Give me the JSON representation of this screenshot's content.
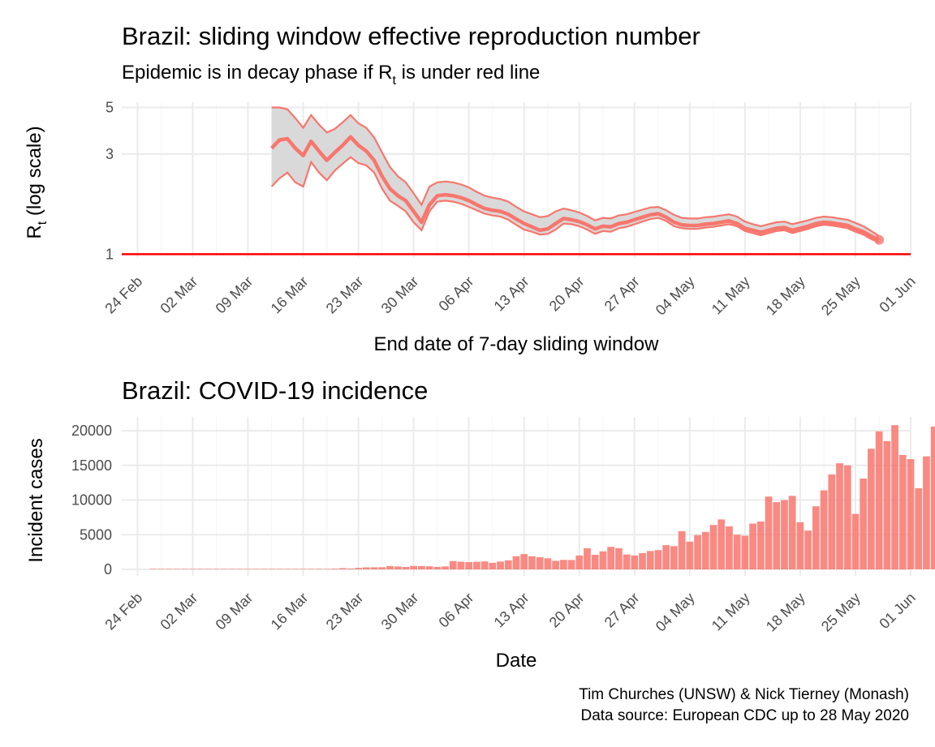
{
  "colors": {
    "series": "#f8766d",
    "ribbon": "#d9d9d9",
    "threshold": "#ff0000",
    "grid": "#ebebeb"
  },
  "chart_data": [
    {
      "type": "line",
      "title": "Brazil: sliding window effective reproduction number",
      "subtitle_prefix": "Epidemic is in decay phase if R",
      "subtitle_sub": "t",
      "subtitle_suffix": "  is under red line",
      "ylabel_main": "R",
      "ylabel_sub": "t",
      "ylabel_suffix": " (log scale)",
      "xlabel": "End date of 7-day sliding window",
      "y_scale": "log",
      "ylim": [
        1,
        5
      ],
      "yticks": [
        1,
        3,
        5
      ],
      "xlim": [
        "2020-02-22",
        "2020-06-01"
      ],
      "xticks": [
        "2020-02-24",
        "2020-03-02",
        "2020-03-09",
        "2020-03-16",
        "2020-03-23",
        "2020-03-30",
        "2020-04-06",
        "2020-04-13",
        "2020-04-20",
        "2020-04-27",
        "2020-05-04",
        "2020-05-11",
        "2020-05-18",
        "2020-05-25",
        "2020-06-01"
      ],
      "xtick_labels": [
        "24 Feb",
        "02 Mar",
        "09 Mar",
        "16 Mar",
        "23 Mar",
        "30 Mar",
        "06 Apr",
        "13 Apr",
        "20 Apr",
        "27 Apr",
        "04 May",
        "11 May",
        "18 May",
        "25 May",
        "01 Jun"
      ],
      "grid": true,
      "threshold": 1,
      "series": [
        {
          "x": [
            "2020-03-12",
            "2020-03-13",
            "2020-03-14",
            "2020-03-15",
            "2020-03-16",
            "2020-03-17",
            "2020-03-18",
            "2020-03-19",
            "2020-03-20",
            "2020-03-21",
            "2020-03-22",
            "2020-03-23",
            "2020-03-24",
            "2020-03-25",
            "2020-03-26",
            "2020-03-27",
            "2020-03-28",
            "2020-03-29",
            "2020-03-30",
            "2020-03-31",
            "2020-04-01",
            "2020-04-02",
            "2020-04-03",
            "2020-04-04",
            "2020-04-05",
            "2020-04-06",
            "2020-04-07",
            "2020-04-08",
            "2020-04-09",
            "2020-04-10",
            "2020-04-11",
            "2020-04-12",
            "2020-04-13",
            "2020-04-14",
            "2020-04-15",
            "2020-04-16",
            "2020-04-17",
            "2020-04-18",
            "2020-04-19",
            "2020-04-20",
            "2020-04-21",
            "2020-04-22",
            "2020-04-23",
            "2020-04-24",
            "2020-04-25",
            "2020-04-26",
            "2020-04-27",
            "2020-04-28",
            "2020-04-29",
            "2020-04-30",
            "2020-05-01",
            "2020-05-02",
            "2020-05-03",
            "2020-05-04",
            "2020-05-05",
            "2020-05-06",
            "2020-05-07",
            "2020-05-08",
            "2020-05-09",
            "2020-05-10",
            "2020-05-11",
            "2020-05-12",
            "2020-05-13",
            "2020-05-14",
            "2020-05-15",
            "2020-05-16",
            "2020-05-17",
            "2020-05-18",
            "2020-05-19",
            "2020-05-20",
            "2020-05-21",
            "2020-05-22",
            "2020-05-23",
            "2020-05-24",
            "2020-05-25",
            "2020-05-26",
            "2020-05-27",
            "2020-05-28"
          ],
          "y": [
            3.2,
            3.5,
            3.55,
            3.2,
            2.95,
            3.45,
            3.1,
            2.8,
            3.05,
            3.3,
            3.62,
            3.3,
            3.1,
            2.8,
            2.35,
            2.05,
            1.9,
            1.8,
            1.6,
            1.42,
            1.72,
            1.9,
            1.92,
            1.9,
            1.86,
            1.8,
            1.72,
            1.65,
            1.62,
            1.6,
            1.55,
            1.47,
            1.4,
            1.35,
            1.3,
            1.32,
            1.4,
            1.48,
            1.46,
            1.43,
            1.38,
            1.32,
            1.36,
            1.35,
            1.4,
            1.42,
            1.46,
            1.5,
            1.54,
            1.56,
            1.5,
            1.42,
            1.38,
            1.37,
            1.37,
            1.39,
            1.4,
            1.42,
            1.44,
            1.4,
            1.33,
            1.3,
            1.27,
            1.3,
            1.33,
            1.34,
            1.3,
            1.33,
            1.36,
            1.4,
            1.42,
            1.41,
            1.39,
            1.37,
            1.32,
            1.28,
            1.22,
            1.17
          ],
          "lower": [
            2.1,
            2.3,
            2.45,
            2.2,
            2.1,
            2.75,
            2.45,
            2.25,
            2.5,
            2.7,
            2.9,
            2.72,
            2.65,
            2.45,
            2.05,
            1.8,
            1.7,
            1.6,
            1.42,
            1.3,
            1.6,
            1.78,
            1.8,
            1.78,
            1.74,
            1.68,
            1.62,
            1.56,
            1.53,
            1.51,
            1.46,
            1.38,
            1.31,
            1.28,
            1.24,
            1.25,
            1.31,
            1.4,
            1.39,
            1.36,
            1.31,
            1.25,
            1.29,
            1.28,
            1.33,
            1.35,
            1.39,
            1.43,
            1.47,
            1.49,
            1.44,
            1.36,
            1.33,
            1.32,
            1.32,
            1.34,
            1.35,
            1.37,
            1.39,
            1.36,
            1.29,
            1.26,
            1.23,
            1.26,
            1.29,
            1.3,
            1.26,
            1.29,
            1.32,
            1.36,
            1.38,
            1.37,
            1.35,
            1.33,
            1.28,
            1.24,
            1.18,
            1.14
          ],
          "upper": [
            5.0,
            5.0,
            4.9,
            4.45,
            4.0,
            4.6,
            4.15,
            3.8,
            3.95,
            4.25,
            4.6,
            4.2,
            4.0,
            3.6,
            3.05,
            2.6,
            2.35,
            2.2,
            1.95,
            1.72,
            2.1,
            2.2,
            2.22,
            2.2,
            2.15,
            2.08,
            1.98,
            1.9,
            1.86,
            1.83,
            1.78,
            1.68,
            1.6,
            1.55,
            1.5,
            1.52,
            1.6,
            1.65,
            1.62,
            1.58,
            1.52,
            1.45,
            1.49,
            1.48,
            1.53,
            1.55,
            1.59,
            1.63,
            1.67,
            1.68,
            1.62,
            1.54,
            1.49,
            1.48,
            1.48,
            1.5,
            1.51,
            1.53,
            1.55,
            1.51,
            1.43,
            1.39,
            1.36,
            1.39,
            1.42,
            1.43,
            1.39,
            1.42,
            1.45,
            1.49,
            1.51,
            1.5,
            1.48,
            1.46,
            1.41,
            1.36,
            1.29,
            1.22
          ]
        }
      ]
    },
    {
      "type": "bar",
      "title": "Brazil: COVID-19 incidence",
      "xlabel": "Date",
      "ylabel": "Incident cases",
      "ylim": [
        0,
        21000
      ],
      "yticks": [
        0,
        5000,
        10000,
        15000,
        20000
      ],
      "xlim": [
        "2020-02-22",
        "2020-06-01"
      ],
      "xticks": [
        "2020-02-24",
        "2020-03-02",
        "2020-03-09",
        "2020-03-16",
        "2020-03-23",
        "2020-03-30",
        "2020-04-06",
        "2020-04-13",
        "2020-04-20",
        "2020-04-27",
        "2020-05-04",
        "2020-05-11",
        "2020-05-18",
        "2020-05-25",
        "2020-06-01"
      ],
      "xtick_labels": [
        "24 Feb",
        "02 Mar",
        "09 Mar",
        "16 Mar",
        "23 Mar",
        "30 Mar",
        "06 Apr",
        "13 Apr",
        "20 Apr",
        "27 Apr",
        "04 May",
        "11 May",
        "18 May",
        "25 May",
        "01 Jun"
      ],
      "grid": true,
      "start_date": "2020-02-26",
      "values": [
        1,
        0,
        0,
        0,
        1,
        0,
        0,
        1,
        0,
        1,
        6,
        5,
        5,
        6,
        2,
        11,
        12,
        16,
        48,
        20,
        50,
        77,
        71,
        100,
        180,
        130,
        220,
        290,
        300,
        310,
        480,
        420,
        350,
        500,
        480,
        450,
        350,
        430,
        1200,
        1100,
        1050,
        1100,
        1150,
        950,
        1130,
        1300,
        1900,
        2200,
        1900,
        1750,
        1600,
        1230,
        1370,
        1350,
        2000,
        3050,
        2100,
        2600,
        3250,
        3050,
        2150,
        2000,
        2350,
        2650,
        2780,
        3500,
        3350,
        5500,
        4000,
        4950,
        5400,
        6400,
        7200,
        6200,
        5000,
        4850,
        6600,
        6900,
        10500,
        9700,
        10000,
        10600,
        6800,
        5600,
        9100,
        11400,
        13700,
        15300,
        15000,
        8000,
        13100,
        17400,
        19900,
        18500,
        20800,
        16500,
        15900,
        11700,
        16300,
        20600
      ]
    }
  ],
  "caption": [
    "Tim Churches (UNSW) & Nick Tierney (Monash)",
    "Data source: European CDC up to 28 May 2020"
  ]
}
